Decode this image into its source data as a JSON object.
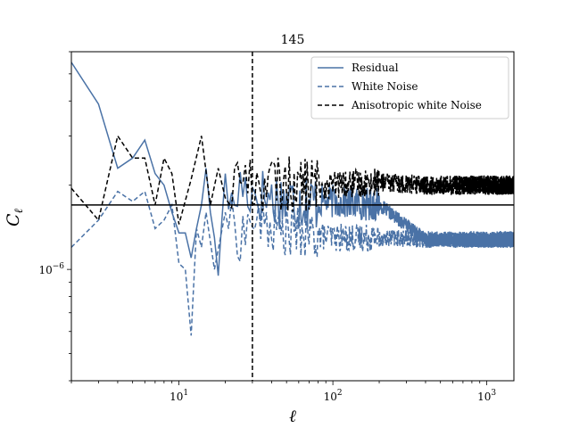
{
  "chart_data": {
    "type": "line",
    "title": "145",
    "xlabel": "ℓ",
    "ylabel": "C",
    "ylabel_subscript": "ℓ",
    "xscale": "log",
    "yscale": "log",
    "xlim": [
      2,
      1500
    ],
    "ylim": [
      4e-07,
      6e-06
    ],
    "x_ticks": [
      {
        "value": 10,
        "base": "10",
        "exp": "1"
      },
      {
        "value": 100,
        "base": "10",
        "exp": "2"
      },
      {
        "value": 1000,
        "base": "10",
        "exp": "3"
      }
    ],
    "y_ticks": [
      {
        "value": 1e-06,
        "base": "10",
        "exp": "−6"
      }
    ],
    "vertical_line": {
      "x": 30,
      "style": "dashed",
      "color": "#000000"
    },
    "horizontal_line": {
      "y": 1.7e-06,
      "style": "solid",
      "color": "#000000"
    },
    "legend_position": "top-right",
    "series": [
      {
        "name": "Residual",
        "color": "#4a72a6",
        "style": "solid",
        "anchors": [
          [
            2,
            5.5e-06
          ],
          [
            3,
            3.9e-06
          ],
          [
            4,
            2.3e-06
          ],
          [
            5,
            2.5e-06
          ],
          [
            6,
            2.9e-06
          ],
          [
            7,
            2.2e-06
          ],
          [
            8,
            2e-06
          ],
          [
            9,
            1.6e-06
          ],
          [
            10,
            1.35e-06
          ],
          [
            11,
            1.35e-06
          ],
          [
            12,
            1.1e-06
          ],
          [
            13,
            1.4e-06
          ],
          [
            14,
            1.7e-06
          ],
          [
            15,
            2.3e-06
          ],
          [
            16,
            1.6e-06
          ],
          [
            17,
            1.3e-06
          ],
          [
            18,
            9.5e-07
          ],
          [
            19,
            1.5e-06
          ],
          [
            20,
            2.2e-06
          ],
          [
            22,
            1.6e-06
          ],
          [
            25,
            2e-06
          ],
          [
            30,
            1.9e-06
          ],
          [
            40,
            1.8e-06
          ],
          [
            60,
            1.75e-06
          ],
          [
            100,
            1.75e-06
          ],
          [
            200,
            1.7e-06
          ],
          [
            400,
            1.28e-06
          ],
          [
            800,
            1.27e-06
          ],
          [
            1500,
            1.27e-06
          ]
        ],
        "noise": [
          {
            "from": 2,
            "to": 20,
            "amp": 0.0
          },
          {
            "from": 20,
            "to": 80,
            "amp": 0.11
          },
          {
            "from": 80,
            "to": 200,
            "amp": 0.06
          },
          {
            "from": 200,
            "to": 1500,
            "amp": 0.025
          }
        ]
      },
      {
        "name": "White Noise",
        "color": "#4a72a6",
        "style": "dashed",
        "anchors": [
          [
            2,
            1.2e-06
          ],
          [
            3,
            1.5e-06
          ],
          [
            4,
            1.9e-06
          ],
          [
            5,
            1.75e-06
          ],
          [
            6,
            1.9e-06
          ],
          [
            7,
            1.4e-06
          ],
          [
            7.5,
            9.5e-07
          ],
          [
            8,
            1.5e-06
          ],
          [
            9,
            1.7e-06
          ],
          [
            10,
            1.05e-06
          ],
          [
            11,
            1e-06
          ],
          [
            12,
            5.8e-07
          ],
          [
            13,
            1.4e-06
          ],
          [
            14,
            1.2e-06
          ],
          [
            15,
            1.6e-06
          ],
          [
            17,
            1e-06
          ],
          [
            20,
            1.6e-06
          ],
          [
            25,
            1.3e-06
          ],
          [
            30,
            1.5e-06
          ],
          [
            40,
            1.4e-06
          ],
          [
            60,
            1.35e-06
          ],
          [
            100,
            1.3e-06
          ],
          [
            200,
            1.3e-06
          ],
          [
            400,
            1.28e-06
          ],
          [
            800,
            1.28e-06
          ],
          [
            1500,
            1.28e-06
          ]
        ],
        "noise": [
          {
            "from": 2,
            "to": 20,
            "amp": 0.0
          },
          {
            "from": 20,
            "to": 80,
            "amp": 0.09
          },
          {
            "from": 80,
            "to": 200,
            "amp": 0.05
          },
          {
            "from": 200,
            "to": 1500,
            "amp": 0.03
          }
        ]
      },
      {
        "name": "Anisotropic white Noise",
        "color": "#000000",
        "style": "dashed",
        "anchors": [
          [
            2,
            1.95e-06
          ],
          [
            3,
            1.5e-06
          ],
          [
            4,
            3e-06
          ],
          [
            5,
            2.5e-06
          ],
          [
            6,
            2.5e-06
          ],
          [
            7,
            1.7e-06
          ],
          [
            8,
            2.5e-06
          ],
          [
            9,
            2.2e-06
          ],
          [
            10,
            1.45e-06
          ],
          [
            12,
            2.1e-06
          ],
          [
            14,
            3e-06
          ],
          [
            16,
            1.7e-06
          ],
          [
            18,
            2.3e-06
          ],
          [
            20,
            1.8e-06
          ],
          [
            25,
            2.2e-06
          ],
          [
            30,
            2e-06
          ],
          [
            40,
            2.05e-06
          ],
          [
            60,
            2e-06
          ],
          [
            100,
            2e-06
          ],
          [
            200,
            2.05e-06
          ],
          [
            400,
            2e-06
          ],
          [
            800,
            2e-06
          ],
          [
            1500,
            2e-06
          ]
        ],
        "noise": [
          {
            "from": 2,
            "to": 20,
            "amp": 0.0
          },
          {
            "from": 20,
            "to": 80,
            "amp": 0.1
          },
          {
            "from": 80,
            "to": 200,
            "amp": 0.05
          },
          {
            "from": 200,
            "to": 1500,
            "amp": 0.035
          }
        ]
      }
    ]
  }
}
